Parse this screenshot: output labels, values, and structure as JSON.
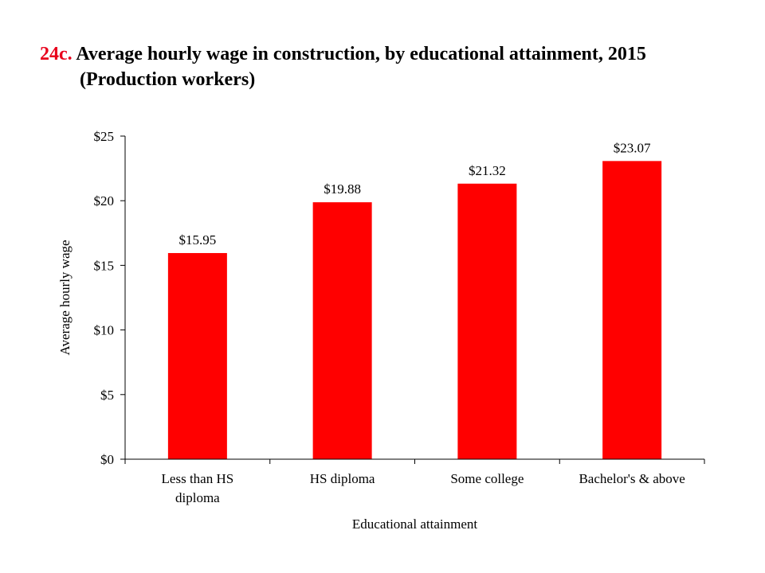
{
  "header": {
    "prefix": "24c.",
    "title_line1": "Average hourly wage in construction, by educational attainment, 2015",
    "title_line2": "(Production workers)"
  },
  "colors": {
    "accent": "#e8001c",
    "bar": "#ff0000",
    "axis": "#000000"
  },
  "chart_data": {
    "type": "bar",
    "categories": [
      [
        "Less than HS",
        "diploma"
      ],
      [
        "HS diploma"
      ],
      [
        "Some college"
      ],
      [
        "Bachelor's & above"
      ]
    ],
    "values": [
      15.95,
      19.88,
      21.32,
      23.07
    ],
    "value_labels": [
      "$15.95",
      "$19.88",
      "$21.32",
      "$23.07"
    ],
    "title": "24c. Average hourly wage in construction, by educational attainment, 2015 (Production workers)",
    "xlabel": "Educational attainment",
    "ylabel": "Average hourly wage",
    "ylim": [
      0,
      25
    ],
    "yticks": [
      0,
      5,
      10,
      15,
      20,
      25
    ],
    "ytick_labels": [
      "$0",
      "$5",
      "$10",
      "$15",
      "$20",
      "$25"
    ],
    "grid": false,
    "legend": "none"
  }
}
